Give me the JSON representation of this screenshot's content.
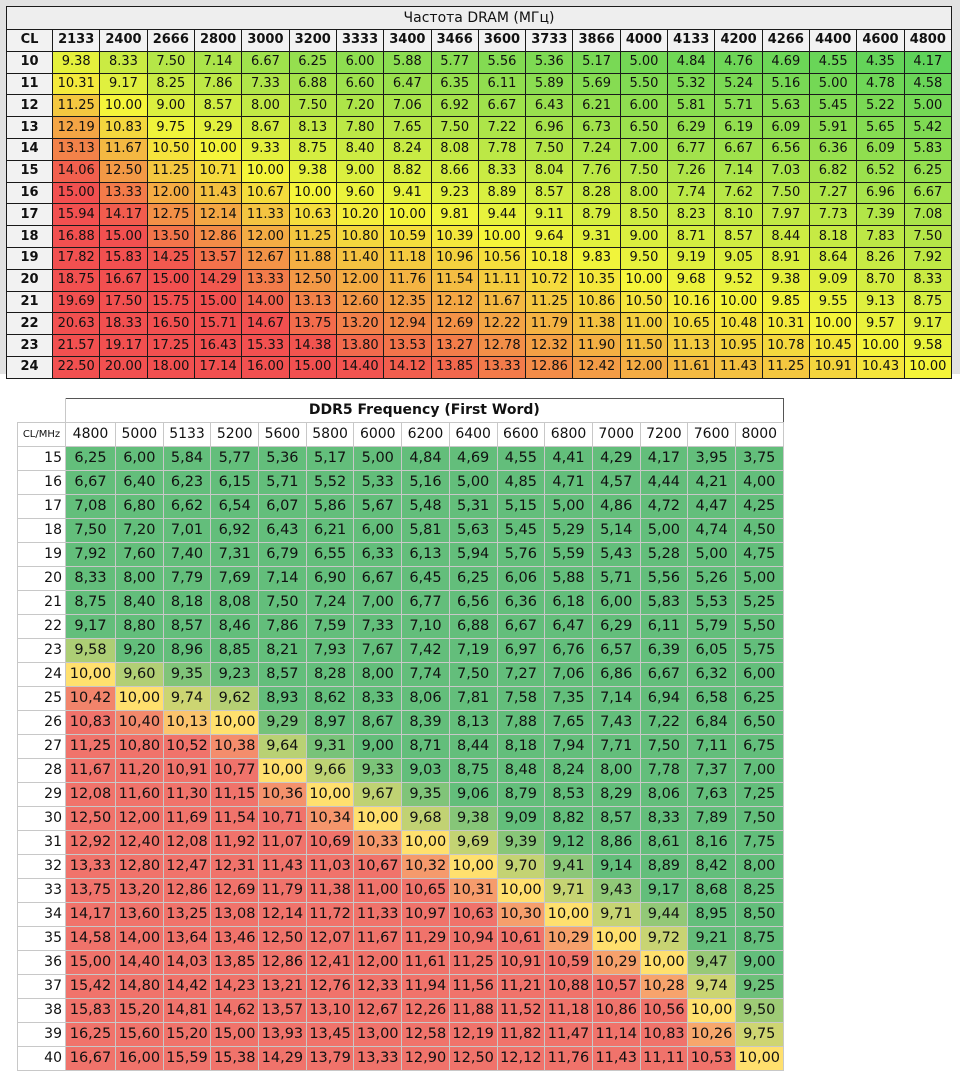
{
  "chart_data": [
    {
      "type": "table",
      "title": "Частота DRAM (МГц)",
      "corner_label": "CL",
      "columns": [
        2133,
        2400,
        2666,
        2800,
        3000,
        3200,
        3333,
        3400,
        3466,
        3600,
        3733,
        3866,
        4000,
        4133,
        4200,
        4266,
        4400,
        4600,
        4800
      ],
      "column_labels": [
        "2133",
        "2400",
        "2666",
        "2800",
        "3000",
        "3200",
        "3333",
        "3400",
        "3466",
        "3600",
        "3733",
        "3866",
        "4000",
        "4133",
        "4200",
        "4266",
        "4400",
        "4600",
        "4800"
      ],
      "rows": [
        10,
        11,
        12,
        13,
        14,
        15,
        16,
        17,
        18,
        19,
        20,
        21,
        22,
        23,
        24
      ],
      "row_labels": [
        "10",
        "11",
        "12",
        "13",
        "14",
        "15",
        "16",
        "17",
        "18",
        "19",
        "20",
        "21",
        "22",
        "23",
        "24"
      ],
      "values": [
        [
          "9.38",
          "8.33",
          "7.50",
          "7.14",
          "6.67",
          "6.25",
          "6.00",
          "5.88",
          "5.77",
          "5.56",
          "5.36",
          "5.17",
          "5.00",
          "4.84",
          "4.76",
          "4.69",
          "4.55",
          "4.35",
          "4.17"
        ],
        [
          "10.31",
          "9.17",
          "8.25",
          "7.86",
          "7.33",
          "6.88",
          "6.60",
          "6.47",
          "6.35",
          "6.11",
          "5.89",
          "5.69",
          "5.50",
          "5.32",
          "5.24",
          "5.16",
          "5.00",
          "4.78",
          "4.58"
        ],
        [
          "11.25",
          "10.00",
          "9.00",
          "8.57",
          "8.00",
          "7.50",
          "7.20",
          "7.06",
          "6.92",
          "6.67",
          "6.43",
          "6.21",
          "6.00",
          "5.81",
          "5.71",
          "5.63",
          "5.45",
          "5.22",
          "5.00"
        ],
        [
          "12.19",
          "10.83",
          "9.75",
          "9.29",
          "8.67",
          "8.13",
          "7.80",
          "7.65",
          "7.50",
          "7.22",
          "6.96",
          "6.73",
          "6.50",
          "6.29",
          "6.19",
          "6.09",
          "5.91",
          "5.65",
          "5.42"
        ],
        [
          "13.13",
          "11.67",
          "10.50",
          "10.00",
          "9.33",
          "8.75",
          "8.40",
          "8.24",
          "8.08",
          "7.78",
          "7.50",
          "7.24",
          "7.00",
          "6.77",
          "6.67",
          "6.56",
          "6.36",
          "6.09",
          "5.83"
        ],
        [
          "14.06",
          "12.50",
          "11.25",
          "10.71",
          "10.00",
          "9.38",
          "9.00",
          "8.82",
          "8.66",
          "8.33",
          "8.04",
          "7.76",
          "7.50",
          "7.26",
          "7.14",
          "7.03",
          "6.82",
          "6.52",
          "6.25"
        ],
        [
          "15.00",
          "13.33",
          "12.00",
          "11.43",
          "10.67",
          "10.00",
          "9.60",
          "9.41",
          "9.23",
          "8.89",
          "8.57",
          "8.28",
          "8.00",
          "7.74",
          "7.62",
          "7.50",
          "7.27",
          "6.96",
          "6.67"
        ],
        [
          "15.94",
          "14.17",
          "12.75",
          "12.14",
          "11.33",
          "10.63",
          "10.20",
          "10.00",
          "9.81",
          "9.44",
          "9.11",
          "8.79",
          "8.50",
          "8.23",
          "8.10",
          "7.97",
          "7.73",
          "7.39",
          "7.08"
        ],
        [
          "16.88",
          "15.00",
          "13.50",
          "12.86",
          "12.00",
          "11.25",
          "10.80",
          "10.59",
          "10.39",
          "10.00",
          "9.64",
          "9.31",
          "9.00",
          "8.71",
          "8.57",
          "8.44",
          "8.18",
          "7.83",
          "7.50"
        ],
        [
          "17.82",
          "15.83",
          "14.25",
          "13.57",
          "12.67",
          "11.88",
          "11.40",
          "11.18",
          "10.96",
          "10.56",
          "10.18",
          "9.83",
          "9.50",
          "9.19",
          "9.05",
          "8.91",
          "8.64",
          "8.26",
          "7.92"
        ],
        [
          "18.75",
          "16.67",
          "15.00",
          "14.29",
          "13.33",
          "12.50",
          "12.00",
          "11.76",
          "11.54",
          "11.11",
          "10.72",
          "10.35",
          "10.00",
          "9.68",
          "9.52",
          "9.38",
          "9.09",
          "8.70",
          "8.33"
        ],
        [
          "19.69",
          "17.50",
          "15.75",
          "15.00",
          "14.00",
          "13.13",
          "12.60",
          "12.35",
          "12.12",
          "11.67",
          "11.25",
          "10.86",
          "10.50",
          "10.16",
          "10.00",
          "9.85",
          "9.55",
          "9.13",
          "8.75"
        ],
        [
          "20.63",
          "18.33",
          "16.50",
          "15.71",
          "14.67",
          "13.75",
          "13.20",
          "12.94",
          "12.69",
          "12.22",
          "11.79",
          "11.38",
          "11.00",
          "10.65",
          "10.48",
          "10.31",
          "10.00",
          "9.57",
          "9.17"
        ],
        [
          "21.57",
          "19.17",
          "17.25",
          "16.43",
          "15.33",
          "14.38",
          "13.80",
          "13.53",
          "13.27",
          "12.78",
          "12.32",
          "11.90",
          "11.50",
          "11.13",
          "10.95",
          "10.78",
          "10.45",
          "10.00",
          "9.58"
        ],
        [
          "22.50",
          "20.00",
          "18.00",
          "17.14",
          "16.00",
          "15.00",
          "14.40",
          "14.12",
          "13.85",
          "13.33",
          "12.86",
          "12.42",
          "12.00",
          "11.61",
          "11.43",
          "11.25",
          "10.91",
          "10.43",
          "10.00"
        ]
      ],
      "color_scale": {
        "low": "#5fd35a",
        "mid": "#f5f53a",
        "high": "#f25050",
        "low_value": 4.17,
        "mid_value": 10.0,
        "high_value": 14.5
      }
    },
    {
      "type": "table",
      "title": "DDR5 Frequency (First Word)",
      "corner_label": "CL/MHz",
      "columns": [
        4800,
        5000,
        5133,
        5200,
        5600,
        5800,
        6000,
        6200,
        6400,
        6600,
        6800,
        7000,
        7200,
        7600,
        8000
      ],
      "column_labels": [
        "4800",
        "5000",
        "5133",
        "5200",
        "5600",
        "5800",
        "6000",
        "6200",
        "6400",
        "6600",
        "6800",
        "7000",
        "7200",
        "7600",
        "8000"
      ],
      "rows": [
        15,
        16,
        17,
        18,
        19,
        20,
        21,
        22,
        23,
        24,
        25,
        26,
        27,
        28,
        29,
        30,
        31,
        32,
        33,
        34,
        35,
        36,
        37,
        38,
        39,
        40
      ],
      "row_labels": [
        "15",
        "16",
        "17",
        "18",
        "19",
        "20",
        "21",
        "22",
        "23",
        "24",
        "25",
        "26",
        "27",
        "28",
        "29",
        "30",
        "31",
        "32",
        "33",
        "34",
        "35",
        "36",
        "37",
        "38",
        "39",
        "40"
      ],
      "values": [
        [
          "6,25",
          "6,00",
          "5,84",
          "5,77",
          "5,36",
          "5,17",
          "5,00",
          "4,84",
          "4,69",
          "4,55",
          "4,41",
          "4,29",
          "4,17",
          "3,95",
          "3,75"
        ],
        [
          "6,67",
          "6,40",
          "6,23",
          "6,15",
          "5,71",
          "5,52",
          "5,33",
          "5,16",
          "5,00",
          "4,85",
          "4,71",
          "4,57",
          "4,44",
          "4,21",
          "4,00"
        ],
        [
          "7,08",
          "6,80",
          "6,62",
          "6,54",
          "6,07",
          "5,86",
          "5,67",
          "5,48",
          "5,31",
          "5,15",
          "5,00",
          "4,86",
          "4,72",
          "4,47",
          "4,25"
        ],
        [
          "7,50",
          "7,20",
          "7,01",
          "6,92",
          "6,43",
          "6,21",
          "6,00",
          "5,81",
          "5,63",
          "5,45",
          "5,29",
          "5,14",
          "5,00",
          "4,74",
          "4,50"
        ],
        [
          "7,92",
          "7,60",
          "7,40",
          "7,31",
          "6,79",
          "6,55",
          "6,33",
          "6,13",
          "5,94",
          "5,76",
          "5,59",
          "5,43",
          "5,28",
          "5,00",
          "4,75"
        ],
        [
          "8,33",
          "8,00",
          "7,79",
          "7,69",
          "7,14",
          "6,90",
          "6,67",
          "6,45",
          "6,25",
          "6,06",
          "5,88",
          "5,71",
          "5,56",
          "5,26",
          "5,00"
        ],
        [
          "8,75",
          "8,40",
          "8,18",
          "8,08",
          "7,50",
          "7,24",
          "7,00",
          "6,77",
          "6,56",
          "6,36",
          "6,18",
          "6,00",
          "5,83",
          "5,53",
          "5,25"
        ],
        [
          "9,17",
          "8,80",
          "8,57",
          "8,46",
          "7,86",
          "7,59",
          "7,33",
          "7,10",
          "6,88",
          "6,67",
          "6,47",
          "6,29",
          "6,11",
          "5,79",
          "5,50"
        ],
        [
          "9,58",
          "9,20",
          "8,96",
          "8,85",
          "8,21",
          "7,93",
          "7,67",
          "7,42",
          "7,19",
          "6,97",
          "6,76",
          "6,57",
          "6,39",
          "6,05",
          "5,75"
        ],
        [
          "10,00",
          "9,60",
          "9,35",
          "9,23",
          "8,57",
          "8,28",
          "8,00",
          "7,74",
          "7,50",
          "7,27",
          "7,06",
          "6,86",
          "6,67",
          "6,32",
          "6,00"
        ],
        [
          "10,42",
          "10,00",
          "9,74",
          "9,62",
          "8,93",
          "8,62",
          "8,33",
          "8,06",
          "7,81",
          "7,58",
          "7,35",
          "7,14",
          "6,94",
          "6,58",
          "6,25"
        ],
        [
          "10,83",
          "10,40",
          "10,13",
          "10,00",
          "9,29",
          "8,97",
          "8,67",
          "8,39",
          "8,13",
          "7,88",
          "7,65",
          "7,43",
          "7,22",
          "6,84",
          "6,50"
        ],
        [
          "11,25",
          "10,80",
          "10,52",
          "10,38",
          "9,64",
          "9,31",
          "9,00",
          "8,71",
          "8,44",
          "8,18",
          "7,94",
          "7,71",
          "7,50",
          "7,11",
          "6,75"
        ],
        [
          "11,67",
          "11,20",
          "10,91",
          "10,77",
          "10,00",
          "9,66",
          "9,33",
          "9,03",
          "8,75",
          "8,48",
          "8,24",
          "8,00",
          "7,78",
          "7,37",
          "7,00"
        ],
        [
          "12,08",
          "11,60",
          "11,30",
          "11,15",
          "10,36",
          "10,00",
          "9,67",
          "9,35",
          "9,06",
          "8,79",
          "8,53",
          "8,29",
          "8,06",
          "7,63",
          "7,25"
        ],
        [
          "12,50",
          "12,00",
          "11,69",
          "11,54",
          "10,71",
          "10,34",
          "10,00",
          "9,68",
          "9,38",
          "9,09",
          "8,82",
          "8,57",
          "8,33",
          "7,89",
          "7,50"
        ],
        [
          "12,92",
          "12,40",
          "12,08",
          "11,92",
          "11,07",
          "10,69",
          "10,33",
          "10,00",
          "9,69",
          "9,39",
          "9,12",
          "8,86",
          "8,61",
          "8,16",
          "7,75"
        ],
        [
          "13,33",
          "12,80",
          "12,47",
          "12,31",
          "11,43",
          "11,03",
          "10,67",
          "10,32",
          "10,00",
          "9,70",
          "9,41",
          "9,14",
          "8,89",
          "8,42",
          "8,00"
        ],
        [
          "13,75",
          "13,20",
          "12,86",
          "12,69",
          "11,79",
          "11,38",
          "11,00",
          "10,65",
          "10,31",
          "10,00",
          "9,71",
          "9,43",
          "9,17",
          "8,68",
          "8,25"
        ],
        [
          "14,17",
          "13,60",
          "13,25",
          "13,08",
          "12,14",
          "11,72",
          "11,33",
          "10,97",
          "10,63",
          "10,30",
          "10,00",
          "9,71",
          "9,44",
          "8,95",
          "8,50"
        ],
        [
          "14,58",
          "14,00",
          "13,64",
          "13,46",
          "12,50",
          "12,07",
          "11,67",
          "11,29",
          "10,94",
          "10,61",
          "10,29",
          "10,00",
          "9,72",
          "9,21",
          "8,75"
        ],
        [
          "15,00",
          "14,40",
          "14,03",
          "13,85",
          "12,86",
          "12,41",
          "12,00",
          "11,61",
          "11,25",
          "10,91",
          "10,59",
          "10,29",
          "10,00",
          "9,47",
          "9,00"
        ],
        [
          "15,42",
          "14,80",
          "14,42",
          "14,23",
          "13,21",
          "12,76",
          "12,33",
          "11,94",
          "11,56",
          "11,21",
          "10,88",
          "10,57",
          "10,28",
          "9,74",
          "9,25"
        ],
        [
          "15,83",
          "15,20",
          "14,81",
          "14,62",
          "13,57",
          "13,10",
          "12,67",
          "12,26",
          "11,88",
          "11,52",
          "11,18",
          "10,86",
          "10,56",
          "10,00",
          "9,50"
        ],
        [
          "16,25",
          "15,60",
          "15,20",
          "15,00",
          "13,93",
          "13,45",
          "13,00",
          "12,58",
          "12,19",
          "11,82",
          "11,47",
          "11,14",
          "10,83",
          "10,26",
          "9,75"
        ],
        [
          "16,67",
          "16,00",
          "15,59",
          "15,38",
          "14,29",
          "13,79",
          "13,33",
          "12,90",
          "12,50",
          "12,12",
          "11,76",
          "11,43",
          "11,11",
          "10,53",
          "10,00"
        ]
      ],
      "color_scale": {
        "low": "#63be7b",
        "mid": "#ffe06e",
        "high": "#f0736b",
        "low_value": 9.2,
        "mid_value": 10.0,
        "high_value": 10.5
      }
    }
  ]
}
